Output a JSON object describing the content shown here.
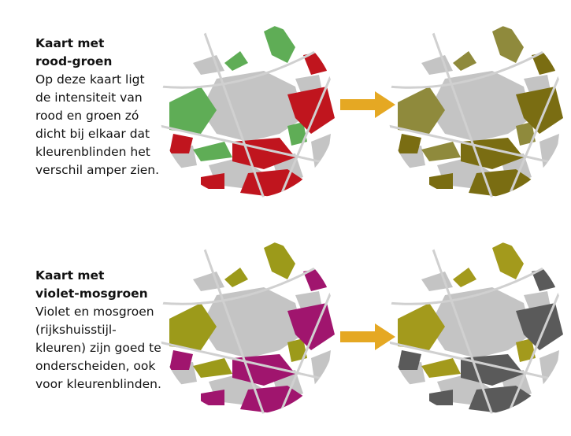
{
  "sections": [
    {
      "title": [
        "Kaart met",
        "rood-groen"
      ],
      "body": [
        "Op deze kaart ligt",
        "de intensiteit van",
        "rood en groen zó",
        "dicht bij elkaar dat",
        "kleurenblinden het",
        "verschil amper zien."
      ]
    },
    {
      "title": [
        "Kaart met",
        "violet-mosgroen"
      ],
      "body": [
        "Violet en mosgroen",
        "(rijkshuisstijl-",
        "kleuren) zijn goed te",
        "onderscheiden, ook",
        "voor kleurenblinden."
      ]
    }
  ]
}
